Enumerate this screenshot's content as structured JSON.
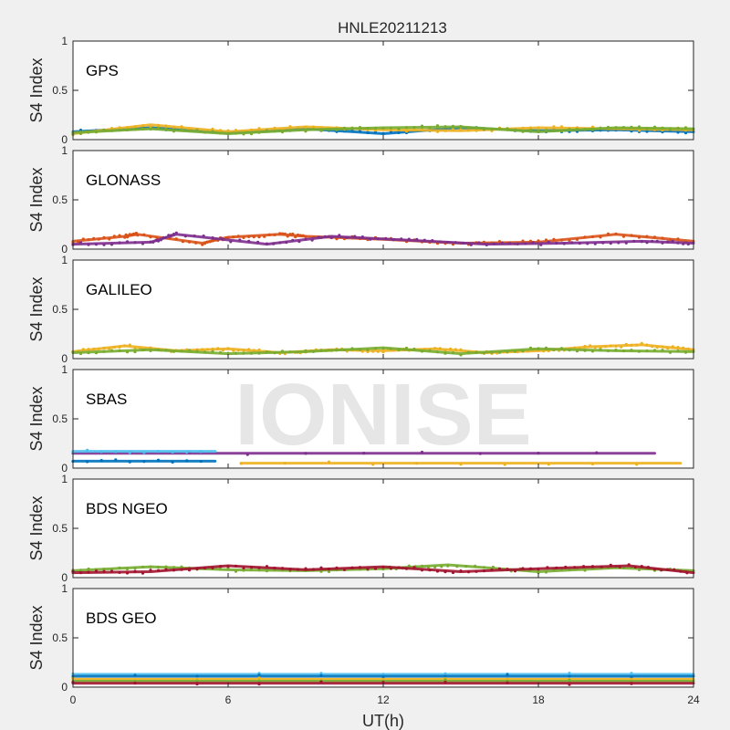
{
  "figure": {
    "title": "HNLE20211213",
    "xlabel": "UT(h)",
    "watermark": "IONISE"
  },
  "chart_data": {
    "type": "scatter",
    "title": "HNLE20211213",
    "xlabel": "UT(h)",
    "xlim": [
      0,
      24
    ],
    "xticks": [
      0,
      6,
      12,
      18,
      24
    ],
    "grid": false,
    "colors": [
      "#0072BD",
      "#D95319",
      "#EDB120",
      "#7E2F8E",
      "#77AC30",
      "#4DBEEE",
      "#A2142F"
    ],
    "panels": [
      {
        "name": "GPS",
        "ylabel": "S4 Index",
        "ylim": [
          0,
          1
        ],
        "yticks": [
          0,
          0.5,
          1
        ],
        "series": [
          {
            "x": [
              0,
              3,
              6,
              9,
              12,
              15,
              18,
              21,
              24
            ],
            "y": [
              0.08,
              0.12,
              0.07,
              0.11,
              0.06,
              0.12,
              0.09,
              0.1,
              0.08
            ]
          },
          {
            "x": [
              0,
              3,
              6,
              9,
              12,
              15,
              18,
              21,
              24
            ],
            "y": [
              0.06,
              0.15,
              0.08,
              0.13,
              0.1,
              0.09,
              0.12,
              0.11,
              0.1
            ]
          },
          {
            "x": [
              0,
              3,
              6,
              9,
              12,
              15,
              18,
              21,
              24
            ],
            "y": [
              0.07,
              0.11,
              0.06,
              0.1,
              0.12,
              0.13,
              0.08,
              0.12,
              0.11
            ]
          }
        ]
      },
      {
        "name": "GLONASS",
        "ylabel": "S4 Index",
        "ylim": [
          0,
          1
        ],
        "yticks": [
          0,
          0.5,
          1
        ],
        "series": [
          {
            "x": [
              0,
              2,
              2.5,
              5,
              6,
              8,
              9,
              12,
              15,
              18,
              21,
              24
            ],
            "y": [
              0.08,
              0.13,
              0.15,
              0.06,
              0.12,
              0.15,
              0.13,
              0.1,
              0.06,
              0.07,
              0.15,
              0.08
            ]
          },
          {
            "x": [
              0,
              3,
              4,
              7.5,
              10,
              13,
              16,
              19,
              22,
              24
            ],
            "y": [
              0.05,
              0.07,
              0.15,
              0.05,
              0.13,
              0.09,
              0.05,
              0.06,
              0.08,
              0.06
            ]
          }
        ]
      },
      {
        "name": "GALILEO",
        "ylabel": "S4 Index",
        "ylim": [
          0,
          1
        ],
        "yticks": [
          0,
          0.5,
          1
        ],
        "series": [
          {
            "x": [
              0,
              2,
              4,
              6,
              8,
              10,
              12,
              14,
              16,
              18,
              20,
              22,
              24
            ],
            "y": [
              0.07,
              0.13,
              0.08,
              0.1,
              0.06,
              0.09,
              0.08,
              0.1,
              0.06,
              0.08,
              0.12,
              0.14,
              0.09
            ]
          },
          {
            "x": [
              0,
              3,
              6,
              9,
              12,
              15,
              18,
              21,
              24
            ],
            "y": [
              0.06,
              0.09,
              0.05,
              0.07,
              0.11,
              0.05,
              0.1,
              0.08,
              0.07
            ]
          }
        ]
      },
      {
        "name": "SBAS",
        "ylabel": "S4 Index",
        "ylim": [
          0,
          1
        ],
        "yticks": [
          0,
          0.5,
          1
        ],
        "series": [
          {
            "x": [
              0,
              22.5
            ],
            "y": [
              0.15,
              0.15
            ]
          },
          {
            "x": [
              0,
              5.5
            ],
            "y": [
              0.17,
              0.17
            ]
          },
          {
            "x": [
              0,
              5.5
            ],
            "y": [
              0.07,
              0.07
            ]
          },
          {
            "x": [
              6.5,
              23.5
            ],
            "y": [
              0.05,
              0.05
            ]
          }
        ]
      },
      {
        "name": "BDS NGEO",
        "ylabel": "S4 Index",
        "ylim": [
          0,
          1
        ],
        "yticks": [
          0,
          0.5,
          1
        ],
        "series": [
          {
            "x": [
              0,
              3,
              6,
              9,
              12,
              14.5,
              18,
              21,
              24
            ],
            "y": [
              0.07,
              0.11,
              0.08,
              0.07,
              0.09,
              0.13,
              0.06,
              0.1,
              0.07
            ]
          },
          {
            "x": [
              0,
              3,
              6,
              9,
              12,
              15,
              18,
              21.5,
              24
            ],
            "y": [
              0.05,
              0.06,
              0.12,
              0.08,
              0.11,
              0.06,
              0.09,
              0.12,
              0.05
            ]
          }
        ]
      },
      {
        "name": "BDS GEO",
        "ylabel": "S4 Index",
        "ylim": [
          0,
          1
        ],
        "yticks": [
          0,
          0.5,
          1
        ],
        "series": [
          {
            "x": [
              0,
              24
            ],
            "y": [
              0.13,
              0.13
            ]
          },
          {
            "x": [
              0,
              24
            ],
            "y": [
              0.11,
              0.11
            ]
          },
          {
            "x": [
              0,
              24
            ],
            "y": [
              0.08,
              0.08
            ]
          },
          {
            "x": [
              0,
              24
            ],
            "y": [
              0.06,
              0.06
            ]
          },
          {
            "x": [
              0,
              24
            ],
            "y": [
              0.04,
              0.04
            ]
          }
        ]
      }
    ]
  }
}
